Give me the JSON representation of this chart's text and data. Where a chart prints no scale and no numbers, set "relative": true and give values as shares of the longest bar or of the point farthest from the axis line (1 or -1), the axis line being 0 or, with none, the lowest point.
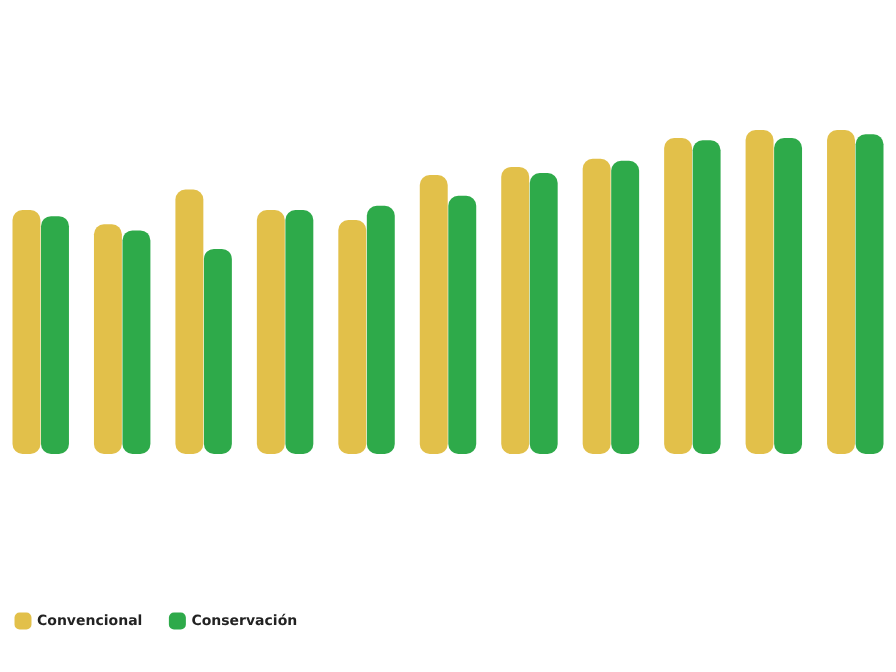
{
  "chart_data": {
    "type": "bar",
    "relative": true,
    "categories": [
      null,
      null,
      null,
      null,
      null,
      null,
      null,
      null,
      null,
      null,
      null
    ],
    "series": [
      {
        "name": "Convencional",
        "color": "#e2c04a",
        "values": [
          0.753,
          0.709,
          0.816,
          0.753,
          0.722,
          0.861,
          0.886,
          0.911,
          0.975,
          1,
          1
        ]
      },
      {
        "name": "Conservación",
        "color": "#2eaa4a",
        "values": [
          0.734,
          0.69,
          0.633,
          0.753,
          0.766,
          0.797,
          0.867,
          0.905,
          0.968,
          0.975,
          0.987
        ]
      }
    ],
    "legend": "bottom left"
  }
}
